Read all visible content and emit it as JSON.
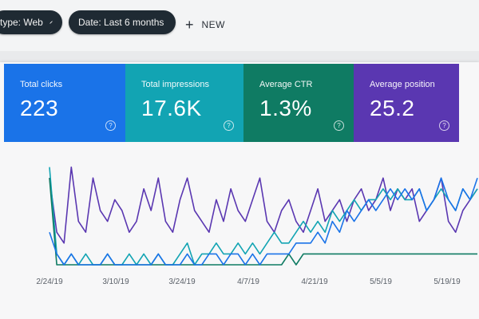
{
  "filters": {
    "type_chip": "type: Web",
    "date_chip": "Date: Last 6 months",
    "new_label": "NEW"
  },
  "cards": [
    {
      "title": "Total clicks",
      "value": "223",
      "color": "#1a73e8"
    },
    {
      "title": "Total impressions",
      "value": "17.6K",
      "color": "#12a4b3"
    },
    {
      "title": "Average CTR",
      "value": "1.3%",
      "color": "#0f7b63"
    },
    {
      "title": "Average position",
      "value": "25.2",
      "color": "#5a37b1"
    }
  ],
  "help_glyph": "?",
  "chart_data": {
    "type": "line",
    "x_ticks": [
      "2/24/19",
      "3/10/19",
      "3/24/19",
      "4/7/19",
      "4/21/19",
      "5/5/19",
      "5/19/19"
    ],
    "grid": false,
    "series": [
      {
        "color": "#5a37b1",
        "values": [
          8,
          3,
          2,
          9,
          4,
          3,
          8,
          5,
          4,
          6,
          5,
          3,
          4,
          7,
          5,
          8,
          4,
          3,
          6,
          8,
          5,
          4,
          3,
          6,
          4,
          7,
          5,
          4,
          6,
          8,
          4,
          3,
          5,
          6,
          4,
          3,
          5,
          7,
          4,
          5,
          6,
          4,
          6,
          7,
          5,
          6,
          8,
          5,
          7,
          6,
          7,
          4,
          5,
          6,
          8,
          4,
          3,
          5,
          6,
          7
        ]
      },
      {
        "color": "#12a4b3",
        "values": [
          9,
          1,
          0,
          1,
          0,
          1,
          0,
          0,
          1,
          0,
          0,
          1,
          0,
          1,
          0,
          1,
          0,
          0,
          1,
          2,
          0,
          1,
          1,
          2,
          1,
          1,
          2,
          1,
          2,
          1,
          2,
          3,
          2,
          2,
          3,
          4,
          3,
          4,
          3,
          5,
          4,
          5,
          6,
          5,
          6,
          6,
          7,
          6,
          7,
          6,
          6,
          7,
          5,
          6,
          7,
          6,
          5,
          7,
          6,
          7
        ]
      },
      {
        "color": "#0f7b63",
        "values": [
          8,
          0,
          0,
          0,
          0,
          0,
          0,
          0,
          0,
          0,
          0,
          0,
          0,
          0,
          0,
          0,
          0,
          0,
          0,
          0,
          0,
          0,
          0,
          0,
          0,
          0,
          0,
          0,
          0,
          0,
          0,
          0,
          0,
          1,
          0,
          1,
          1,
          1,
          1,
          1,
          1,
          1,
          1,
          1,
          1,
          1,
          1,
          1,
          1,
          1,
          1,
          1,
          1,
          1,
          1,
          1,
          1,
          1,
          1,
          1
        ]
      },
      {
        "color": "#1a73e8",
        "values": [
          3,
          1,
          0,
          1,
          0,
          0,
          0,
          0,
          1,
          0,
          0,
          0,
          0,
          0,
          0,
          1,
          0,
          0,
          0,
          1,
          0,
          0,
          1,
          1,
          0,
          1,
          1,
          0,
          1,
          0,
          1,
          1,
          1,
          1,
          2,
          2,
          2,
          3,
          2,
          4,
          3,
          5,
          4,
          5,
          6,
          5,
          6,
          7,
          6,
          7,
          6,
          7,
          5,
          6,
          8,
          6,
          5,
          7,
          6,
          8
        ]
      }
    ]
  }
}
